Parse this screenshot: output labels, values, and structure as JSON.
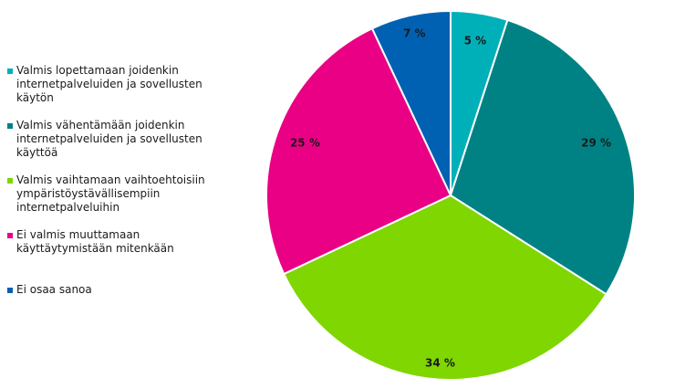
{
  "chart_data": {
    "type": "pie",
    "title": "",
    "start_angle_deg": 0,
    "direction": "clockwise",
    "legend_position": "left",
    "slices": [
      {
        "label": "Valmis lopettamaan joidenkin internetpalveluiden ja sovellusten käytön",
        "value": 5,
        "value_label": "5 %",
        "color": "#00B0B9"
      },
      {
        "label": "Valmis vähentämään joidenkin internetpalveluiden ja sovellusten käyttöä",
        "value": 29,
        "value_label": "29 %",
        "color": "#008285"
      },
      {
        "label": "Valmis vaihtamaan vaihtoehtoisiin ympäristöystävällisempiin internetpalveluihin",
        "value": 34,
        "value_label": "34 %",
        "color": "#7FD600"
      },
      {
        "label": "Ei valmis muuttamaan käyttäytymistään mitenkään",
        "value": 25,
        "value_label": "25 %",
        "color": "#EA0085"
      },
      {
        "label": "Ei osaa sanoa",
        "value": 7,
        "value_label": "7 %",
        "color": "#0061B3"
      }
    ]
  }
}
